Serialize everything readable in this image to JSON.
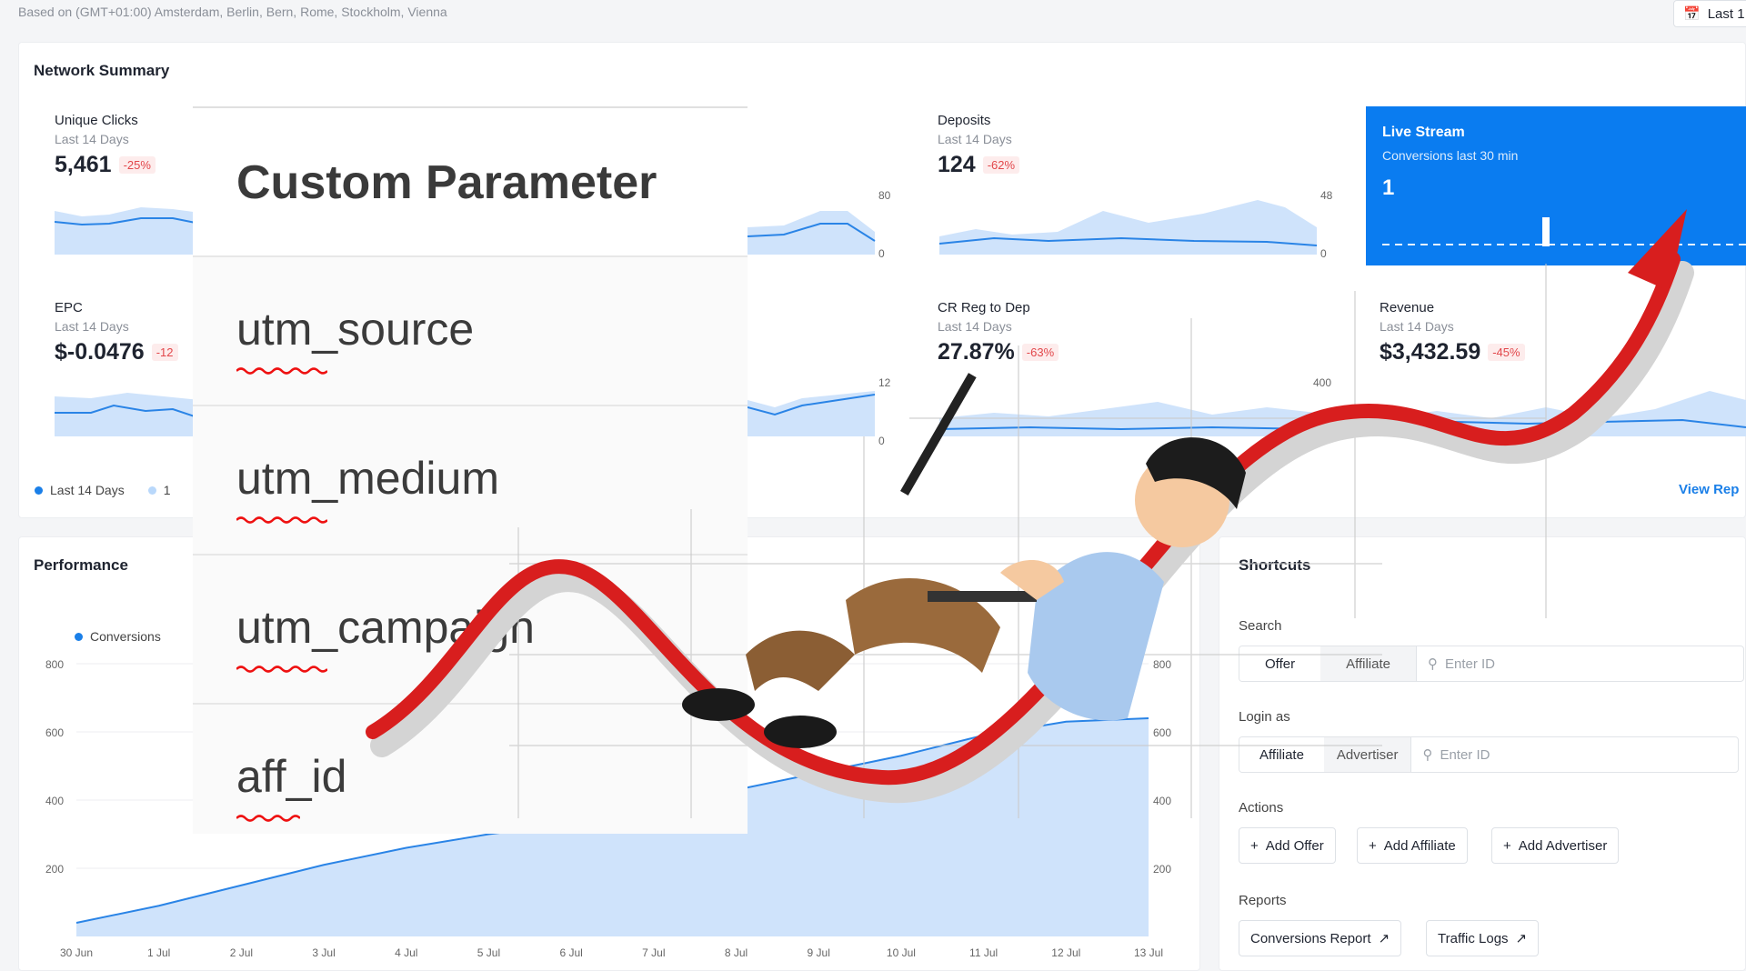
{
  "timezone": "Based on (GMT+01:00) Amsterdam, Berlin, Bern, Rome, Stockholm, Vienna",
  "date_button": "Last 1",
  "network_summary": {
    "title": "Network Summary",
    "metrics": [
      {
        "label": "Unique Clicks",
        "sub": "Last 14 Days",
        "value": "5,461",
        "change": "-25%"
      },
      {
        "label": "Deposits",
        "sub": "Last 14 Days",
        "value": "124",
        "change": "-62%"
      },
      {
        "label": "EPC",
        "sub": "Last 14 Days",
        "value": "$-0.0476",
        "change": "-12"
      },
      {
        "label": "CR Reg to Dep",
        "sub": "Last 14 Days",
        "value": "27.87%",
        "change": "-63%"
      },
      {
        "label": "Revenue",
        "sub": "Last 14 Days",
        "value": "$3,432.59",
        "change": "-45%"
      }
    ],
    "spark_axis": {
      "a_max": "80",
      "a_min": "0",
      "b_max": "48",
      "b_min": "0",
      "c_max": "12",
      "c_min": "0",
      "d_max": "400"
    },
    "legend": [
      "Last 14 Days",
      "1"
    ],
    "view_link": "View Rep"
  },
  "live_stream": {
    "title": "Live Stream",
    "sub": "Conversions last 30 min",
    "value": "1"
  },
  "overlay": {
    "title": "Custom Parameter",
    "params": [
      "utm_source",
      "utm_medium",
      "utm_campaign",
      "aff_id"
    ]
  },
  "performance": {
    "title": "Performance",
    "legend": "Conversions",
    "left_ticks": [
      "800",
      "600",
      "400",
      "200"
    ],
    "right_ticks": [
      "800",
      "600",
      "400",
      "200"
    ]
  },
  "chart_data": {
    "type": "area",
    "x": [
      "30 Jun",
      "1 Jul",
      "2 Jul",
      "3 Jul",
      "4 Jul",
      "5 Jul",
      "6 Jul",
      "7 Jul",
      "8 Jul",
      "9 Jul",
      "10 Jul",
      "11 Jul",
      "12 Jul",
      "13 Jul"
    ],
    "series": [
      {
        "name": "Conversions",
        "values": [
          40,
          90,
          150,
          210,
          260,
          300,
          330,
          380,
          430,
          480,
          530,
          590,
          630,
          640
        ]
      }
    ],
    "ylim": [
      0,
      850
    ]
  },
  "shortcuts": {
    "title": "Shortcuts",
    "search_label": "Search",
    "search_options": [
      "Offer",
      "Affiliate"
    ],
    "search_placeholder": "Enter ID",
    "login_label": "Login as",
    "login_options": [
      "Affiliate",
      "Advertiser"
    ],
    "login_placeholder": "Enter ID",
    "actions_label": "Actions",
    "actions": [
      "Add Offer",
      "Add Affiliate",
      "Add Advertiser"
    ],
    "reports_label": "Reports",
    "reports": [
      "Conversions Report",
      "Traffic Logs"
    ]
  }
}
